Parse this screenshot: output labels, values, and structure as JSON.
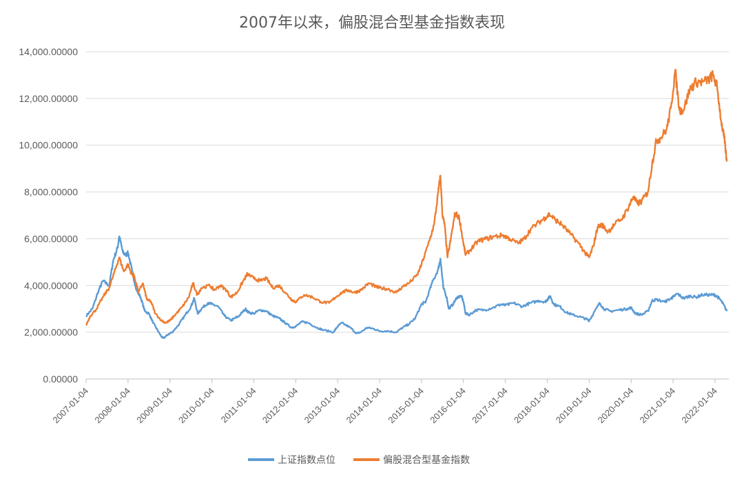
{
  "chart_data": {
    "type": "line",
    "title": "2007年以来，偏股混合型基金指数表现",
    "xlabel": "",
    "ylabel": "",
    "ylim": [
      0,
      14000
    ],
    "yticks": [
      "0.00000",
      "2,000.00000",
      "4,000.00000",
      "6,000.00000",
      "8,000.00000",
      "10,000.00000",
      "12,000.00000",
      "14,000.00000"
    ],
    "xticks": [
      "2007-01-04",
      "2008-01-04",
      "2009-01-04",
      "2010-01-04",
      "2011-01-04",
      "2012-01-04",
      "2013-01-04",
      "2014-01-04",
      "2015-01-04",
      "2016-01-04",
      "2017-01-04",
      "2018-01-04",
      "2019-01-04",
      "2020-01-04",
      "2021-01-04",
      "2022-01-04"
    ],
    "grid": true,
    "legend_position": "bottom",
    "series": [
      {
        "name": "上证指数点位",
        "color": "#5B9BD5",
        "points": [
          [
            2007.0,
            2700
          ],
          [
            2007.15,
            3000
          ],
          [
            2007.3,
            3800
          ],
          [
            2007.4,
            4200
          ],
          [
            2007.55,
            4000
          ],
          [
            2007.65,
            5100
          ],
          [
            2007.75,
            5600
          ],
          [
            2007.79,
            6100
          ],
          [
            2007.88,
            5400
          ],
          [
            2007.95,
            5300
          ],
          [
            2008.0,
            5400
          ],
          [
            2008.1,
            4600
          ],
          [
            2008.2,
            3800
          ],
          [
            2008.3,
            3500
          ],
          [
            2008.4,
            2900
          ],
          [
            2008.5,
            2800
          ],
          [
            2008.6,
            2400
          ],
          [
            2008.7,
            2100
          ],
          [
            2008.8,
            1800
          ],
          [
            2008.85,
            1750
          ],
          [
            2008.95,
            1900
          ],
          [
            2009.05,
            2000
          ],
          [
            2009.2,
            2300
          ],
          [
            2009.35,
            2700
          ],
          [
            2009.5,
            3100
          ],
          [
            2009.58,
            3450
          ],
          [
            2009.66,
            2800
          ],
          [
            2009.75,
            3000
          ],
          [
            2009.9,
            3250
          ],
          [
            2010.0,
            3200
          ],
          [
            2010.15,
            3100
          ],
          [
            2010.3,
            2700
          ],
          [
            2010.45,
            2500
          ],
          [
            2010.55,
            2600
          ],
          [
            2010.65,
            2700
          ],
          [
            2010.8,
            3000
          ],
          [
            2010.87,
            2850
          ],
          [
            2011.0,
            2800
          ],
          [
            2011.15,
            2950
          ],
          [
            2011.3,
            2900
          ],
          [
            2011.45,
            2700
          ],
          [
            2011.6,
            2600
          ],
          [
            2011.75,
            2400
          ],
          [
            2011.9,
            2200
          ],
          [
            2012.0,
            2250
          ],
          [
            2012.15,
            2450
          ],
          [
            2012.3,
            2400
          ],
          [
            2012.5,
            2200
          ],
          [
            2012.65,
            2100
          ],
          [
            2012.9,
            2000
          ],
          [
            2013.0,
            2250
          ],
          [
            2013.1,
            2400
          ],
          [
            2013.3,
            2200
          ],
          [
            2013.45,
            1950
          ],
          [
            2013.55,
            2000
          ],
          [
            2013.7,
            2200
          ],
          [
            2013.85,
            2150
          ],
          [
            2014.0,
            2050
          ],
          [
            2014.2,
            2050
          ],
          [
            2014.4,
            2000
          ],
          [
            2014.55,
            2200
          ],
          [
            2014.7,
            2350
          ],
          [
            2014.85,
            2600
          ],
          [
            2015.0,
            3200
          ],
          [
            2015.1,
            3300
          ],
          [
            2015.25,
            4100
          ],
          [
            2015.4,
            4700
          ],
          [
            2015.45,
            5150
          ],
          [
            2015.52,
            3900
          ],
          [
            2015.6,
            3500
          ],
          [
            2015.65,
            3000
          ],
          [
            2015.75,
            3200
          ],
          [
            2015.85,
            3500
          ],
          [
            2015.95,
            3550
          ],
          [
            2016.0,
            3300
          ],
          [
            2016.05,
            2800
          ],
          [
            2016.15,
            2750
          ],
          [
            2016.3,
            2950
          ],
          [
            2016.5,
            2950
          ],
          [
            2016.7,
            3050
          ],
          [
            2016.9,
            3200
          ],
          [
            2017.0,
            3150
          ],
          [
            2017.2,
            3250
          ],
          [
            2017.4,
            3100
          ],
          [
            2017.6,
            3250
          ],
          [
            2017.8,
            3350
          ],
          [
            2017.95,
            3300
          ],
          [
            2018.0,
            3400
          ],
          [
            2018.07,
            3550
          ],
          [
            2018.15,
            3200
          ],
          [
            2018.3,
            3100
          ],
          [
            2018.45,
            2850
          ],
          [
            2018.6,
            2750
          ],
          [
            2018.8,
            2650
          ],
          [
            2018.95,
            2550
          ],
          [
            2019.0,
            2500
          ],
          [
            2019.1,
            2800
          ],
          [
            2019.25,
            3250
          ],
          [
            2019.35,
            3000
          ],
          [
            2019.5,
            2900
          ],
          [
            2019.7,
            2950
          ],
          [
            2019.9,
            3000
          ],
          [
            2020.0,
            3050
          ],
          [
            2020.1,
            2800
          ],
          [
            2020.25,
            2750
          ],
          [
            2020.4,
            2900
          ],
          [
            2020.5,
            3350
          ],
          [
            2020.6,
            3400
          ],
          [
            2020.8,
            3300
          ],
          [
            2020.95,
            3450
          ],
          [
            2021.0,
            3500
          ],
          [
            2021.1,
            3650
          ],
          [
            2021.25,
            3450
          ],
          [
            2021.4,
            3550
          ],
          [
            2021.55,
            3500
          ],
          [
            2021.7,
            3600
          ],
          [
            2021.9,
            3600
          ],
          [
            2022.0,
            3600
          ],
          [
            2022.1,
            3450
          ],
          [
            2022.2,
            3200
          ],
          [
            2022.28,
            2900
          ]
        ]
      },
      {
        "name": "偏股混合型基金指数",
        "color": "#ED7D31",
        "points": [
          [
            2007.0,
            2300
          ],
          [
            2007.1,
            2700
          ],
          [
            2007.25,
            3000
          ],
          [
            2007.4,
            3500
          ],
          [
            2007.55,
            3900
          ],
          [
            2007.7,
            4700
          ],
          [
            2007.79,
            5200
          ],
          [
            2007.9,
            4600
          ],
          [
            2008.0,
            4900
          ],
          [
            2008.08,
            4500
          ],
          [
            2008.15,
            4400
          ],
          [
            2008.25,
            3700
          ],
          [
            2008.35,
            4100
          ],
          [
            2008.45,
            3400
          ],
          [
            2008.55,
            3300
          ],
          [
            2008.65,
            2800
          ],
          [
            2008.8,
            2500
          ],
          [
            2008.9,
            2400
          ],
          [
            2009.0,
            2500
          ],
          [
            2009.15,
            2800
          ],
          [
            2009.3,
            3100
          ],
          [
            2009.45,
            3500
          ],
          [
            2009.55,
            4100
          ],
          [
            2009.65,
            3600
          ],
          [
            2009.75,
            3900
          ],
          [
            2009.95,
            4000
          ],
          [
            2010.05,
            3800
          ],
          [
            2010.2,
            4000
          ],
          [
            2010.35,
            3800
          ],
          [
            2010.45,
            3500
          ],
          [
            2010.6,
            3700
          ],
          [
            2010.75,
            4200
          ],
          [
            2010.85,
            4500
          ],
          [
            2011.0,
            4300
          ],
          [
            2011.15,
            4200
          ],
          [
            2011.3,
            4300
          ],
          [
            2011.45,
            3900
          ],
          [
            2011.6,
            4000
          ],
          [
            2011.75,
            3700
          ],
          [
            2011.9,
            3400
          ],
          [
            2012.0,
            3300
          ],
          [
            2012.2,
            3600
          ],
          [
            2012.4,
            3500
          ],
          [
            2012.6,
            3300
          ],
          [
            2012.8,
            3250
          ],
          [
            2012.95,
            3500
          ],
          [
            2013.1,
            3700
          ],
          [
            2013.25,
            3800
          ],
          [
            2013.4,
            3700
          ],
          [
            2013.55,
            3800
          ],
          [
            2013.75,
            4100
          ],
          [
            2013.9,
            3950
          ],
          [
            2014.0,
            3900
          ],
          [
            2014.2,
            3850
          ],
          [
            2014.4,
            3700
          ],
          [
            2014.55,
            3950
          ],
          [
            2014.7,
            4100
          ],
          [
            2014.9,
            4450
          ],
          [
            2015.0,
            4900
          ],
          [
            2015.15,
            5700
          ],
          [
            2015.3,
            6600
          ],
          [
            2015.4,
            8000
          ],
          [
            2015.45,
            8700
          ],
          [
            2015.5,
            7000
          ],
          [
            2015.55,
            6600
          ],
          [
            2015.62,
            5200
          ],
          [
            2015.7,
            6000
          ],
          [
            2015.8,
            7100
          ],
          [
            2015.9,
            6900
          ],
          [
            2016.0,
            5800
          ],
          [
            2016.05,
            5300
          ],
          [
            2016.2,
            5600
          ],
          [
            2016.35,
            5900
          ],
          [
            2016.55,
            6000
          ],
          [
            2016.75,
            6100
          ],
          [
            2016.95,
            6150
          ],
          [
            2017.1,
            6000
          ],
          [
            2017.3,
            5800
          ],
          [
            2017.45,
            6000
          ],
          [
            2017.6,
            6400
          ],
          [
            2017.8,
            6700
          ],
          [
            2017.95,
            6900
          ],
          [
            2018.05,
            7050
          ],
          [
            2018.2,
            6800
          ],
          [
            2018.35,
            6600
          ],
          [
            2018.55,
            6200
          ],
          [
            2018.75,
            5800
          ],
          [
            2018.9,
            5400
          ],
          [
            2019.0,
            5200
          ],
          [
            2019.1,
            5700
          ],
          [
            2019.2,
            6500
          ],
          [
            2019.3,
            6600
          ],
          [
            2019.45,
            6300
          ],
          [
            2019.6,
            6600
          ],
          [
            2019.8,
            6900
          ],
          [
            2019.95,
            7400
          ],
          [
            2020.05,
            7800
          ],
          [
            2020.15,
            7500
          ],
          [
            2020.25,
            7600
          ],
          [
            2020.4,
            8000
          ],
          [
            2020.5,
            9200
          ],
          [
            2020.6,
            10200
          ],
          [
            2020.7,
            10300
          ],
          [
            2020.85,
            10700
          ],
          [
            2020.95,
            11600
          ],
          [
            2021.05,
            13200
          ],
          [
            2021.15,
            11500
          ],
          [
            2021.25,
            11500
          ],
          [
            2021.4,
            12400
          ],
          [
            2021.55,
            12700
          ],
          [
            2021.7,
            12700
          ],
          [
            2021.85,
            12800
          ],
          [
            2021.95,
            13000
          ],
          [
            2022.05,
            12500
          ],
          [
            2022.15,
            11000
          ],
          [
            2022.22,
            10300
          ],
          [
            2022.28,
            9300
          ]
        ]
      }
    ]
  }
}
